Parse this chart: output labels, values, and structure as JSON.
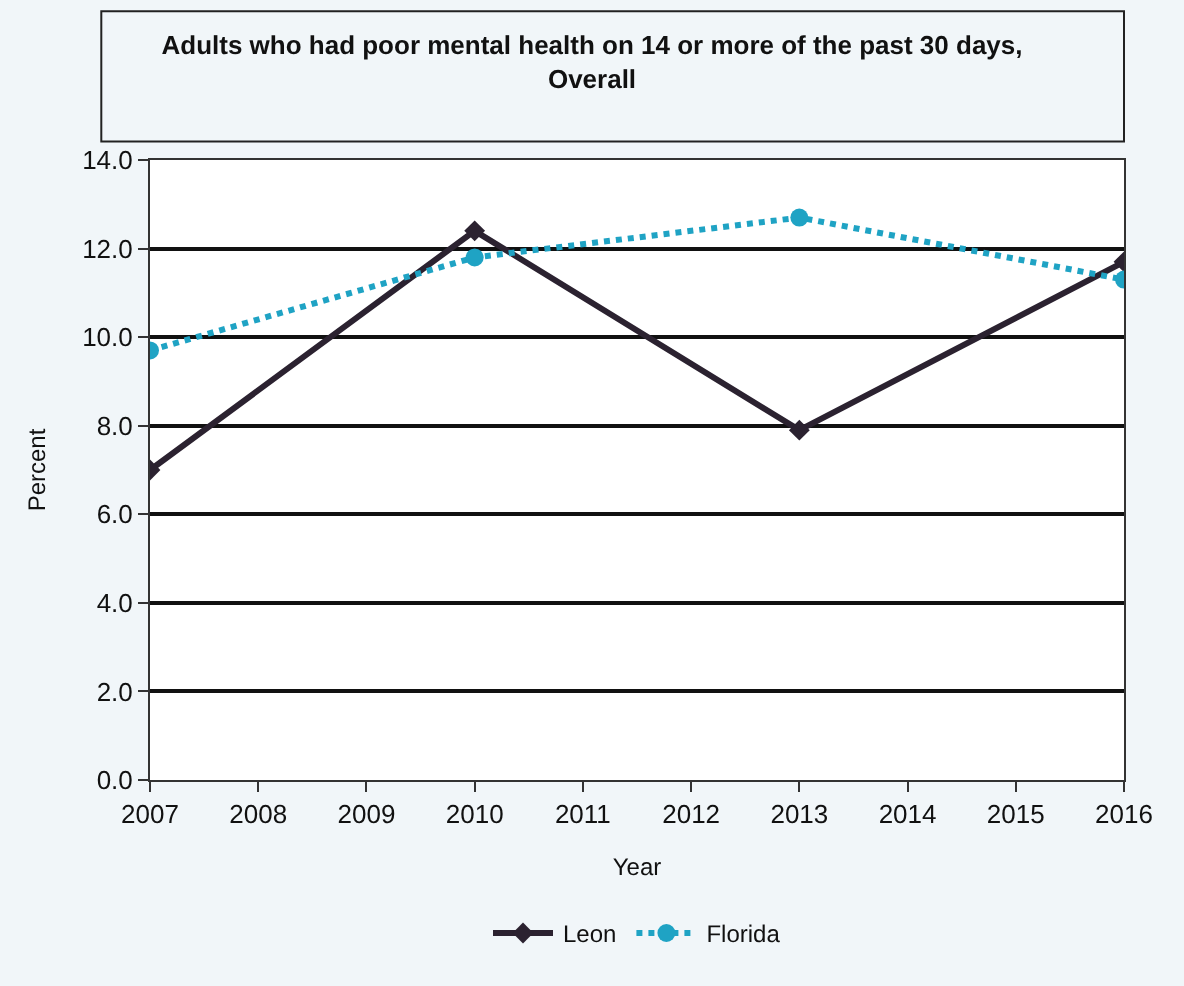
{
  "chart_data": {
    "type": "line",
    "title": "Adults who had poor mental health on 14 or more of the past 30 days,\nOverall",
    "xlabel": "Year",
    "ylabel": "Percent",
    "x": [
      2007,
      2010,
      2013,
      2016
    ],
    "series": [
      {
        "name": "Leon",
        "color": "#2b2230",
        "values": [
          7.0,
          12.4,
          7.9,
          11.7
        ],
        "marker": "diamond",
        "line_style": "solid"
      },
      {
        "name": "Florida",
        "color": "#1fa3c4",
        "values": [
          9.7,
          11.8,
          12.7,
          11.3
        ],
        "marker": "circle",
        "line_style": "dotted"
      }
    ],
    "xlim": [
      2007,
      2016
    ],
    "xticks": [
      2007,
      2008,
      2009,
      2010,
      2011,
      2012,
      2013,
      2014,
      2015,
      2016
    ],
    "ylim": [
      0,
      14
    ],
    "yticks": [
      {
        "value": 0,
        "label": "0.0"
      },
      {
        "value": 2,
        "label": "2.0"
      },
      {
        "value": 4,
        "label": "4.0"
      },
      {
        "value": 6,
        "label": "6.0"
      },
      {
        "value": 8,
        "label": "8.0"
      },
      {
        "value": 10,
        "label": "10.0"
      },
      {
        "value": 12,
        "label": "12.0"
      },
      {
        "value": 14,
        "label": "14.0"
      }
    ],
    "grid": "y",
    "legend": "bottom"
  }
}
